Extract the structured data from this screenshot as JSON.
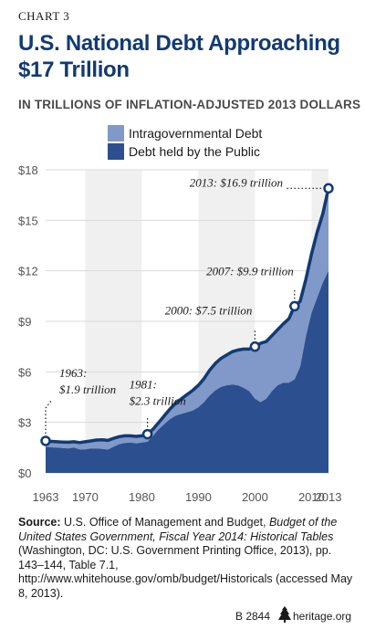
{
  "header": {
    "chart_label": "CHART 3",
    "title": "U.S. National Debt Approaching $17 Trillion",
    "subtitle": "IN TRILLIONS OF INFLATION-ADJUSTED 2013 DOLLARS"
  },
  "legend": [
    {
      "name": "Intragovernmental Debt",
      "color": "#8099c8"
    },
    {
      "name": "Debt held by the Public",
      "color": "#2c4f8f"
    }
  ],
  "chart_data": {
    "type": "area",
    "stacked": true,
    "title": "U.S. National Debt Approaching $17 Trillion",
    "ylabel": "",
    "xlabel": "",
    "xlim": [
      1963,
      2013
    ],
    "ylim": [
      0,
      18
    ],
    "x_ticks": [
      1963,
      1970,
      1980,
      1990,
      2000,
      2010,
      2013
    ],
    "x_tick_labels": [
      "1963",
      "1970",
      "1980",
      "1990",
      "2000",
      "2010",
      "2013"
    ],
    "y_ticks": [
      0,
      3,
      6,
      9,
      12,
      15,
      18
    ],
    "y_tick_labels": [
      "$0",
      "$3",
      "$6",
      "$9",
      "$12",
      "$15",
      "$18"
    ],
    "grid": true,
    "legend_position": "top",
    "x": [
      1963,
      1964,
      1965,
      1966,
      1967,
      1968,
      1969,
      1970,
      1971,
      1972,
      1973,
      1974,
      1975,
      1976,
      1977,
      1978,
      1979,
      1980,
      1981,
      1982,
      1983,
      1984,
      1985,
      1986,
      1987,
      1988,
      1989,
      1990,
      1991,
      1992,
      1993,
      1994,
      1995,
      1996,
      1997,
      1998,
      1999,
      2000,
      2001,
      2002,
      2003,
      2004,
      2005,
      2006,
      2007,
      2008,
      2009,
      2010,
      2011,
      2012,
      2013
    ],
    "series": [
      {
        "name": "Debt held by the Public",
        "color": "#2c4f8f",
        "values": [
          1.55,
          1.52,
          1.5,
          1.48,
          1.45,
          1.5,
          1.4,
          1.4,
          1.45,
          1.45,
          1.42,
          1.38,
          1.55,
          1.7,
          1.78,
          1.8,
          1.75,
          1.8,
          1.85,
          2.2,
          2.6,
          2.9,
          3.2,
          3.4,
          3.5,
          3.6,
          3.7,
          3.9,
          4.2,
          4.6,
          4.9,
          5.1,
          5.2,
          5.25,
          5.2,
          5.05,
          4.85,
          4.4,
          4.2,
          4.4,
          4.85,
          5.2,
          5.35,
          5.35,
          5.55,
          6.3,
          8.1,
          9.5,
          10.4,
          11.3,
          12.0
        ]
      },
      {
        "name": "Intragovernmental Debt",
        "color": "#8099c8",
        "values": [
          0.35,
          0.35,
          0.35,
          0.35,
          0.37,
          0.35,
          0.4,
          0.45,
          0.45,
          0.5,
          0.55,
          0.55,
          0.5,
          0.45,
          0.42,
          0.4,
          0.42,
          0.4,
          0.45,
          0.4,
          0.4,
          0.5,
          0.6,
          0.75,
          0.9,
          1.05,
          1.2,
          1.3,
          1.4,
          1.5,
          1.6,
          1.7,
          1.8,
          1.95,
          2.1,
          2.3,
          2.5,
          3.1,
          3.5,
          3.4,
          3.3,
          3.3,
          3.5,
          3.8,
          4.35,
          3.9,
          3.4,
          3.5,
          3.9,
          4.1,
          4.9
        ]
      }
    ],
    "annotations": [
      {
        "year": 1963,
        "value": 1.9,
        "line1": "1963:",
        "line2": "$1.9 trillion"
      },
      {
        "year": 1981,
        "value": 2.3,
        "line1": "1981:",
        "line2": "$2.3 trillion"
      },
      {
        "year": 2000,
        "value": 7.5,
        "line1": "2000: $7.5 trillion",
        "line2": ""
      },
      {
        "year": 2007,
        "value": 9.9,
        "line1": "2007: $9.9 trillion",
        "line2": ""
      },
      {
        "year": 2013,
        "value": 16.9,
        "line1": "2013: $16.9 trillion",
        "line2": ""
      }
    ]
  },
  "source": {
    "label": "Source:",
    "text_plain_1": "U.S. Office of Management and Budget, ",
    "text_italic": "Budget of the United States Government, Fiscal Year 2014: Historical Tables",
    "text_plain_2": " (Washington, DC: U.S. Government Printing Office, 2013), pp. 143–144, Table 7.1, http://www.whitehouse.gov/omb/budget/Historicals (accessed May 8, 2013)."
  },
  "footer": {
    "id": "B 2844",
    "site": "heritage.org"
  },
  "colors": {
    "title": "#123a73",
    "total_line": "#123a73",
    "axis_text": "#555555",
    "grid": "#d9d9d9",
    "band_shade": "#f0f0f0"
  }
}
